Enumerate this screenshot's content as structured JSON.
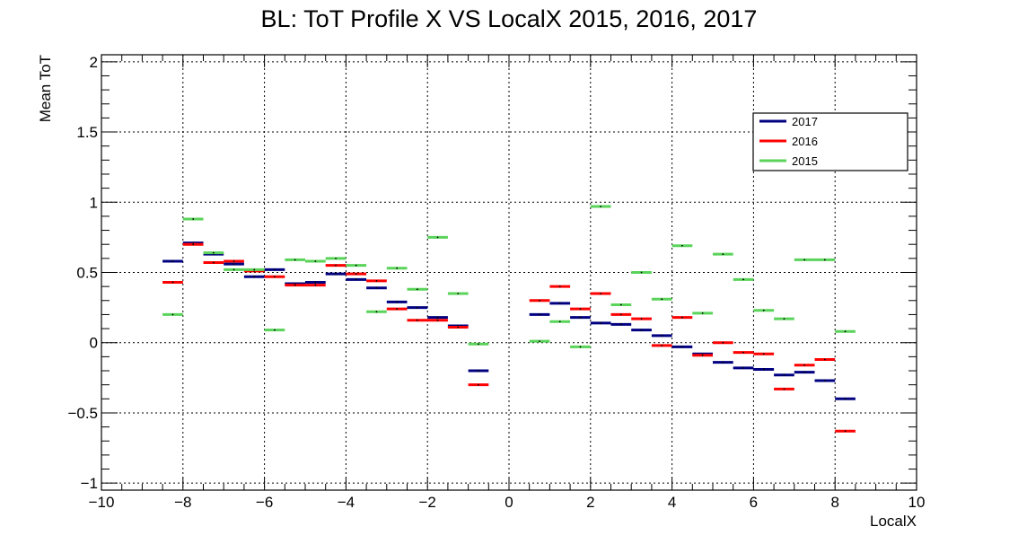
{
  "chart_data": {
    "type": "scatter",
    "title": "BL: ToT Profile X VS LocalX 2015, 2016, 2017",
    "xlabel": "LocalX",
    "ylabel": "Mean ToT",
    "xlim": [
      -10,
      10
    ],
    "ylim": [
      -1.05,
      2.05
    ],
    "xticks": [
      -10,
      -8,
      -6,
      -4,
      -2,
      0,
      2,
      4,
      6,
      8,
      10
    ],
    "yticks": [
      -1,
      -0.5,
      0,
      0.5,
      1,
      1.5,
      2
    ],
    "xtick_labels": [
      "−10",
      "−8",
      "−6",
      "−4",
      "−2",
      "0",
      "2",
      "4",
      "6",
      "8",
      "10"
    ],
    "ytick_labels": [
      "−1",
      "−0.5",
      "0",
      "0.5",
      "1",
      "1.5",
      "2"
    ],
    "grid": true,
    "legend_position": "top-right",
    "bin_width": 0.5,
    "series": [
      {
        "name": "2017",
        "color": "#000080",
        "x": [
          -8.25,
          -7.75,
          -7.25,
          -6.75,
          -6.25,
          -5.75,
          -5.25,
          -4.75,
          -4.25,
          -3.75,
          -3.25,
          -2.75,
          -2.25,
          -1.75,
          -1.25,
          -0.75,
          0.75,
          1.25,
          1.75,
          2.25,
          2.75,
          3.25,
          3.75,
          4.25,
          4.75,
          5.25,
          5.75,
          6.25,
          6.75,
          7.25,
          7.75,
          8.25
        ],
        "values": [
          0.58,
          0.71,
          0.63,
          0.56,
          0.47,
          0.52,
          0.42,
          0.43,
          0.49,
          0.45,
          0.39,
          0.29,
          0.25,
          0.18,
          0.12,
          -0.2,
          0.2,
          0.28,
          0.18,
          0.14,
          0.13,
          0.09,
          0.05,
          -0.03,
          -0.08,
          -0.14,
          -0.18,
          -0.19,
          -0.23,
          -0.21,
          -0.27,
          -0.4
        ]
      },
      {
        "name": "2016",
        "color": "#ff0000",
        "x": [
          -8.25,
          -7.75,
          -7.25,
          -6.75,
          -6.25,
          -5.75,
          -5.25,
          -4.75,
          -4.25,
          -3.75,
          -3.25,
          -2.75,
          -2.25,
          -1.75,
          -1.25,
          -0.75,
          0.75,
          1.25,
          1.75,
          2.25,
          2.75,
          3.25,
          3.75,
          4.25,
          4.75,
          5.25,
          5.75,
          6.25,
          6.75,
          7.25,
          7.75,
          8.25
        ],
        "values": [
          0.43,
          0.7,
          0.57,
          0.58,
          0.51,
          0.47,
          0.41,
          0.41,
          0.55,
          0.49,
          0.44,
          0.24,
          0.16,
          0.16,
          0.11,
          -0.3,
          0.3,
          0.4,
          0.24,
          0.35,
          0.2,
          0.17,
          -0.02,
          0.18,
          -0.09,
          0.0,
          -0.07,
          -0.08,
          -0.33,
          -0.16,
          -0.12,
          -0.63
        ]
      },
      {
        "name": "2015",
        "color": "#5ad35a",
        "x": [
          -8.25,
          -7.75,
          -7.25,
          -6.75,
          -6.25,
          -5.75,
          -5.25,
          -4.75,
          -4.25,
          -3.75,
          -3.25,
          -2.75,
          -2.25,
          -1.75,
          -1.25,
          -0.75,
          0.75,
          1.25,
          1.75,
          2.25,
          2.75,
          3.25,
          3.75,
          4.25,
          4.75,
          5.25,
          5.75,
          6.25,
          6.75,
          7.25,
          7.75,
          8.25
        ],
        "values": [
          0.2,
          0.88,
          0.64,
          0.52,
          0.52,
          0.09,
          0.59,
          0.58,
          0.6,
          0.55,
          0.22,
          0.53,
          0.38,
          0.75,
          0.35,
          -0.01,
          0.01,
          0.15,
          -0.03,
          0.97,
          0.27,
          0.5,
          0.31,
          0.69,
          0.21,
          0.63,
          0.45,
          0.23,
          0.17,
          0.59,
          0.59,
          0.08
        ]
      }
    ]
  }
}
